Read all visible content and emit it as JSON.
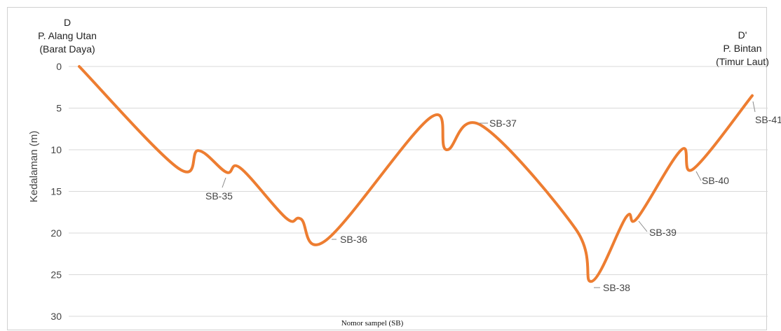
{
  "chart_data": {
    "type": "line",
    "xlabel": "Nomor sampel (SB)",
    "ylabel": "Kedalaman (m)",
    "ylim": [
      0,
      30
    ],
    "y_inverted": true,
    "yticks": [
      "0",
      "5",
      "10",
      "15",
      "20",
      "25",
      "30"
    ],
    "grid": true,
    "line_color": "#ED7D31",
    "endpoints": {
      "left": {
        "code": "D",
        "name": "P. Alang Utan",
        "direction": "(Barat Daya)"
      },
      "right": {
        "code": "D'",
        "name": "P. Bintan",
        "direction": "(Timur Laut)"
      }
    },
    "series": [
      {
        "values": [
          0,
          12.2,
          10.1,
          12.7,
          12.2,
          18.2,
          18.3,
          20.8,
          6.2,
          10.0,
          7.1,
          19.5,
          25.8,
          18.1,
          18.2,
          10.0,
          12.3,
          3.5
        ]
      }
    ],
    "annotations": [
      {
        "label": "SB-35",
        "depth": 12.7
      },
      {
        "label": "SB-36",
        "depth": 20.8
      },
      {
        "label": "SB-37",
        "depth": 7.1
      },
      {
        "label": "SB-38",
        "depth": 25.8
      },
      {
        "label": "SB-39",
        "depth": 18.2
      },
      {
        "label": "SB-40",
        "depth": 12.3
      },
      {
        "label": "SB-41",
        "depth": 3.5
      }
    ]
  }
}
